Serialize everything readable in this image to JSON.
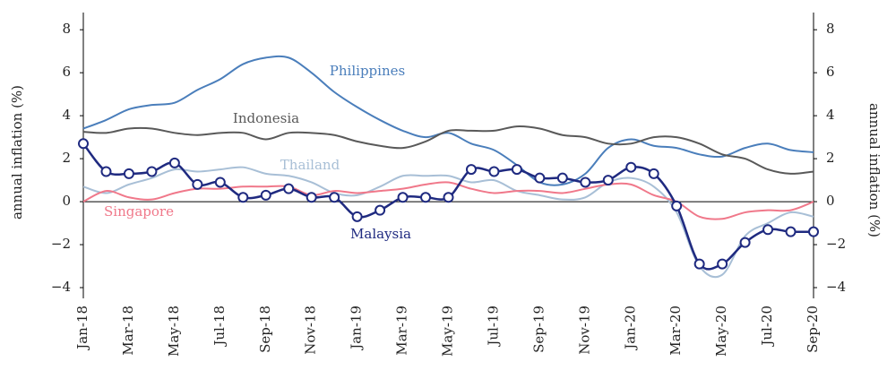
{
  "chart_data": {
    "type": "line",
    "y_label": "annual inflation (%)",
    "y2_label": "annual inflation (%)",
    "categories": [
      "Jan-18",
      null,
      "Mar-18",
      null,
      "May-18",
      null,
      "Jul-18",
      null,
      "Sep-18",
      null,
      "Nov-18",
      null,
      "Jan-19",
      null,
      "Mar-19",
      null,
      "May-19",
      null,
      "Jul-19",
      null,
      "Sep-19",
      null,
      "Nov-19",
      null,
      "Jan-20",
      null,
      "Mar-20",
      null,
      "May-20",
      null,
      "Jul-20",
      null,
      "Sep-20"
    ],
    "ylim": [
      -4.5,
      8.8
    ],
    "yticks": [
      {
        "value": -4,
        "label": "−4"
      },
      {
        "value": -2,
        "label": "−2"
      },
      0,
      2,
      4,
      6,
      8
    ],
    "y2lim": [
      -4.5,
      8.8
    ],
    "y2ticks": [
      {
        "value": -4,
        "label": "−4"
      },
      {
        "value": -2,
        "label": "−2"
      },
      0,
      2,
      4,
      6,
      8
    ],
    "series": [
      {
        "name": "Philippines",
        "color": "#4a7ebb",
        "values": [
          3.4,
          3.8,
          4.3,
          4.5,
          4.6,
          5.2,
          5.7,
          6.4,
          6.7,
          6.7,
          6.0,
          5.1,
          4.4,
          3.8,
          3.3,
          3.0,
          3.2,
          2.7,
          2.4,
          1.7,
          0.9,
          0.8,
          1.3,
          2.5,
          2.9,
          2.6,
          2.5,
          2.2,
          2.1,
          2.5,
          2.7,
          2.4,
          2.3
        ]
      },
      {
        "name": "Indonesia",
        "color": "#595959",
        "values": [
          3.25,
          3.2,
          3.4,
          3.4,
          3.2,
          3.1,
          3.2,
          3.2,
          2.9,
          3.2,
          3.2,
          3.1,
          2.8,
          2.6,
          2.5,
          2.8,
          3.3,
          3.3,
          3.3,
          3.5,
          3.4,
          3.1,
          3.0,
          2.7,
          2.7,
          3.0,
          3.0,
          2.7,
          2.2,
          2.0,
          1.5,
          1.3,
          1.4
        ]
      },
      {
        "name": "Thailand",
        "color": "#a8bfd6",
        "values": [
          0.7,
          0.4,
          0.8,
          1.1,
          1.5,
          1.4,
          1.5,
          1.6,
          1.3,
          1.2,
          0.9,
          0.4,
          0.3,
          0.7,
          1.2,
          1.2,
          1.2,
          0.9,
          1.0,
          0.5,
          0.3,
          0.1,
          0.2,
          0.9,
          1.1,
          0.7,
          -0.5,
          -3.0,
          -3.4,
          -1.6,
          -1.0,
          -0.5,
          -0.7
        ]
      },
      {
        "name": "Singapore",
        "color": "#f0788a",
        "values": [
          0.0,
          0.5,
          0.2,
          0.1,
          0.4,
          0.6,
          0.6,
          0.7,
          0.7,
          0.7,
          0.3,
          0.5,
          0.4,
          0.5,
          0.6,
          0.8,
          0.9,
          0.6,
          0.4,
          0.5,
          0.5,
          0.4,
          0.6,
          0.8,
          0.8,
          0.3,
          0.0,
          -0.7,
          -0.8,
          -0.5,
          -0.4,
          -0.4,
          0.0
        ]
      },
      {
        "name": "Malaysia",
        "color": "#1f2a80",
        "markers": true,
        "values": [
          2.7,
          1.4,
          1.3,
          1.4,
          1.8,
          0.8,
          0.9,
          0.2,
          0.3,
          0.6,
          0.2,
          0.2,
          -0.7,
          -0.4,
          0.2,
          0.2,
          0.2,
          1.5,
          1.4,
          1.5,
          1.1,
          1.1,
          0.9,
          1.0,
          1.6,
          1.3,
          -0.2,
          -2.9,
          -2.9,
          -1.9,
          -1.3,
          -1.4,
          -1.4
        ]
      }
    ]
  }
}
